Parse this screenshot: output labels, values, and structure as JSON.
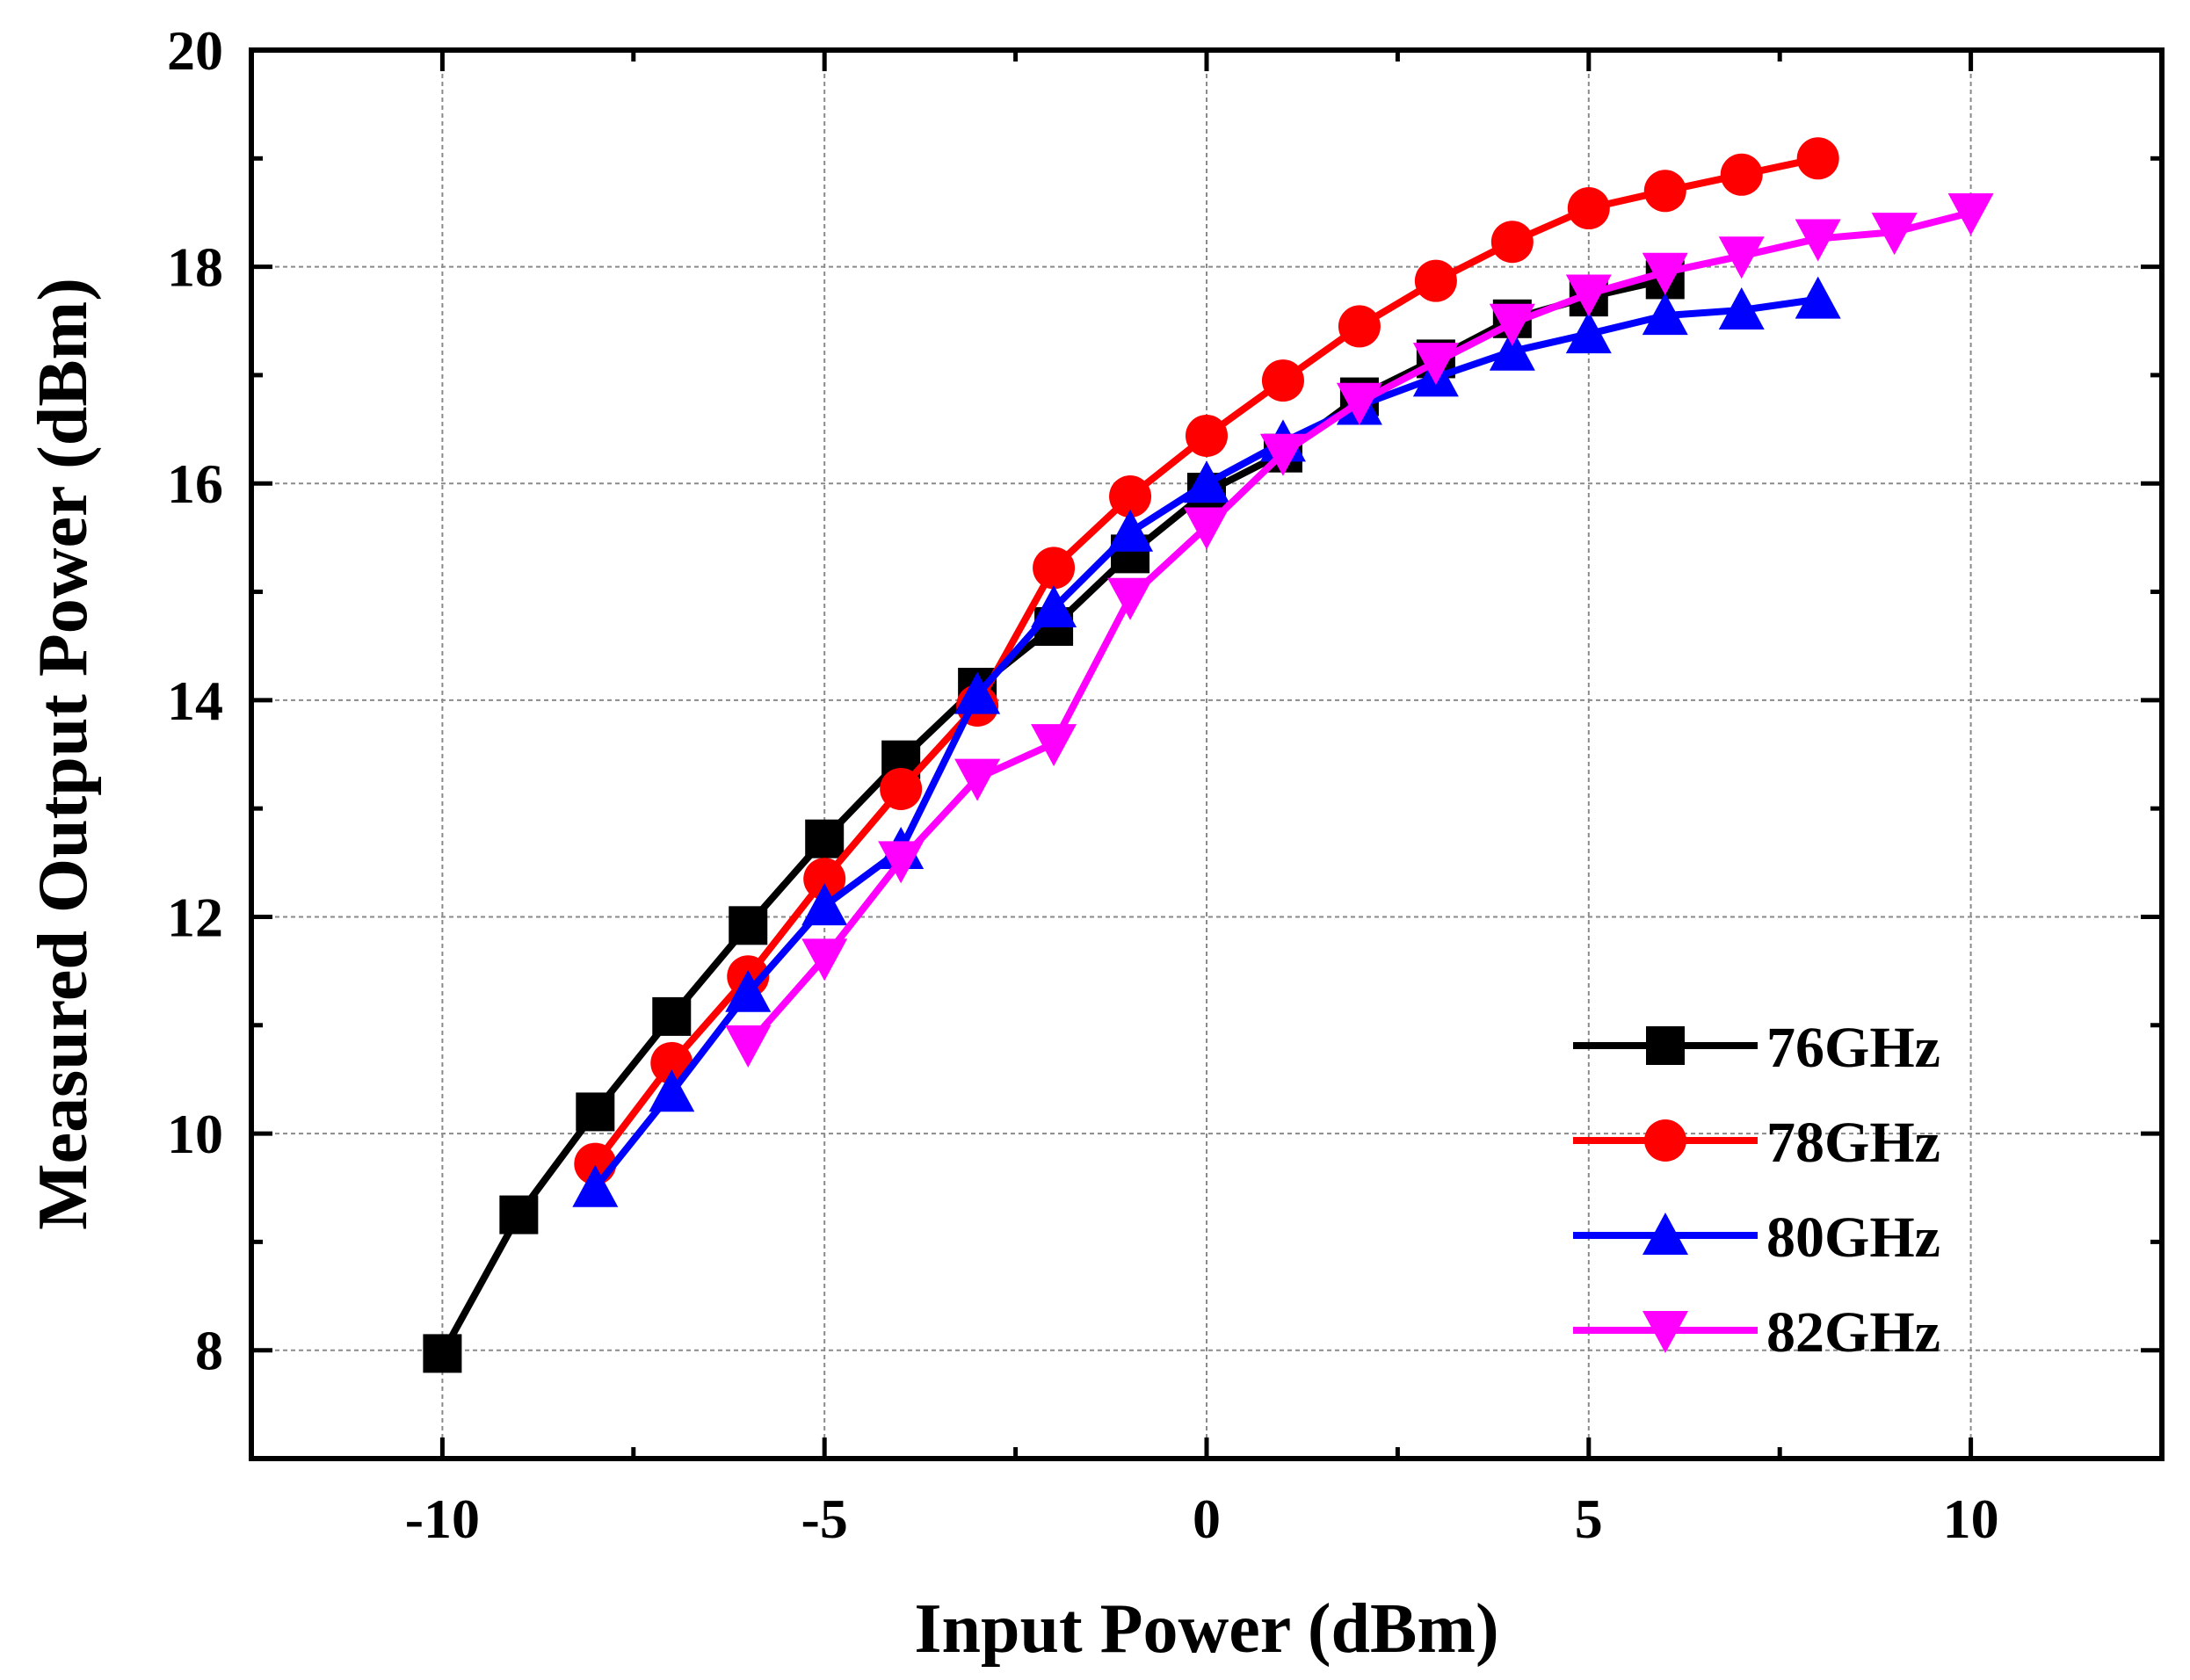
{
  "chart_data": {
    "type": "line",
    "title": "",
    "xlabel": "Input Power (dBm)",
    "ylabel": "Measured Output Power (dBm)",
    "xlim": [
      -12.5,
      12.5
    ],
    "ylim": [
      7,
      20
    ],
    "xticks": [
      -10,
      -5,
      0,
      5,
      10
    ],
    "yticks": [
      8,
      10,
      12,
      14,
      16,
      18,
      20
    ],
    "xtick_labels": [
      "-10",
      "-5",
      "0",
      "5",
      "10"
    ],
    "ytick_labels": [
      "8",
      "10",
      "12",
      "14",
      "16",
      "18",
      "20"
    ],
    "grid": true,
    "legend_position": "bottom-right",
    "series": [
      {
        "name": "76GHz",
        "color": "#000000",
        "marker": "square",
        "x": [
          -10,
          -9,
          -8,
          -7,
          -6,
          -5,
          -4,
          -3,
          -2,
          -1,
          0,
          1,
          2,
          3,
          4,
          5,
          6
        ],
        "y": [
          7.97,
          9.25,
          10.2,
          11.08,
          11.92,
          12.72,
          13.45,
          14.12,
          14.68,
          15.35,
          15.92,
          16.28,
          16.8,
          17.15,
          17.52,
          17.72,
          17.88
        ]
      },
      {
        "name": "78GHz",
        "color": "#ff0000",
        "marker": "circle",
        "x": [
          -8,
          -7,
          -6,
          -5,
          -4,
          -3,
          -2,
          -1,
          0,
          1,
          2,
          3,
          4,
          5,
          6,
          7,
          8
        ],
        "y": [
          9.72,
          10.65,
          11.45,
          12.35,
          13.18,
          13.95,
          15.22,
          15.88,
          16.44,
          16.95,
          17.45,
          17.87,
          18.23,
          18.54,
          18.7,
          18.85,
          19.0
        ]
      },
      {
        "name": "80GHz",
        "color": "#0000ff",
        "marker": "triangle-up",
        "x": [
          -8,
          -7,
          -6,
          -5,
          -4,
          -3,
          -2,
          -1,
          0,
          1,
          2,
          3,
          4,
          5,
          6,
          7,
          8
        ],
        "y": [
          9.5,
          10.38,
          11.3,
          12.1,
          12.62,
          14.05,
          14.85,
          15.55,
          16.0,
          16.38,
          16.72,
          16.98,
          17.22,
          17.38,
          17.55,
          17.6,
          17.7
        ]
      },
      {
        "name": "82GHz",
        "color": "#ff00ff",
        "marker": "triangle-down",
        "x": [
          -6,
          -5,
          -4,
          -3,
          -2,
          -1,
          0,
          1,
          2,
          3,
          4,
          5,
          6,
          7,
          8,
          9,
          10
        ],
        "y": [
          10.82,
          11.62,
          12.52,
          13.28,
          13.6,
          14.95,
          15.6,
          16.28,
          16.75,
          17.12,
          17.48,
          17.75,
          17.95,
          18.1,
          18.26,
          18.32,
          18.5
        ]
      }
    ]
  }
}
